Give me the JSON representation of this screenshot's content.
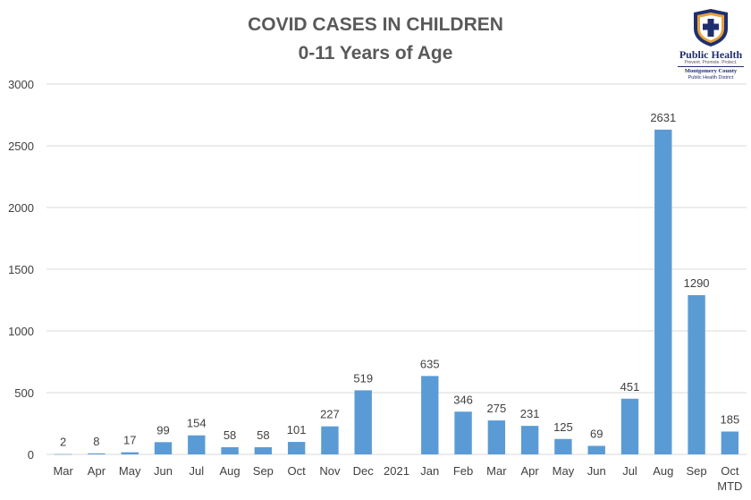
{
  "logo": {
    "name": "Public Health",
    "tagline": "Prevent. Promote. Protect.",
    "county": "Montgomery County",
    "district": "Public Health District"
  },
  "colors": {
    "bar": "#5b9bd5",
    "grid": "#d9d9d9",
    "text": "#404040",
    "title": "#595959"
  },
  "chart_data": {
    "type": "bar",
    "title": "COVID CASES IN CHILDREN",
    "subtitle": "0-11 Years of Age",
    "xlabel": "",
    "ylabel": "",
    "ylim": [
      0,
      3000
    ],
    "yticks": [
      0,
      500,
      1000,
      1500,
      2000,
      2500,
      3000
    ],
    "grid": true,
    "legend": "none",
    "categories": [
      "Mar",
      "Apr",
      "May",
      "Jun",
      "Jul",
      "Aug",
      "Sep",
      "Oct",
      "Nov",
      "Dec",
      "2021",
      "Jan",
      "Feb",
      "Mar",
      "Apr",
      "May",
      "Jun",
      "Jul",
      "Aug",
      "Sep",
      "Oct MTD"
    ],
    "values": [
      2,
      8,
      17,
      99,
      154,
      58,
      58,
      101,
      227,
      519,
      null,
      635,
      346,
      275,
      231,
      125,
      69,
      451,
      2631,
      1290,
      185
    ]
  }
}
